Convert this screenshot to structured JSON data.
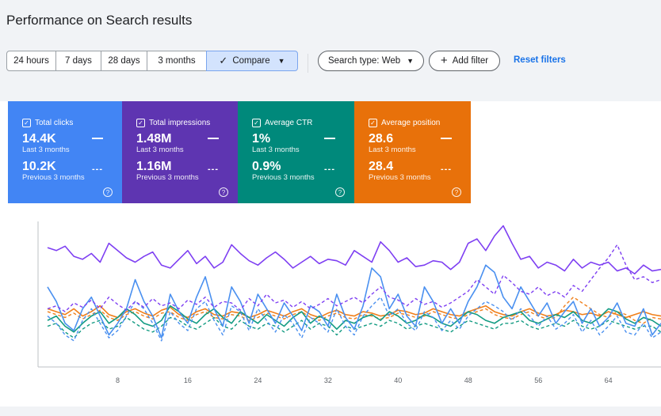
{
  "page": {
    "title": "Performance on Search results"
  },
  "toolbar": {
    "ranges": [
      "24 hours",
      "7 days",
      "28 days",
      "3 months"
    ],
    "compare_label": "Compare",
    "search_type": "Search type: Web",
    "add_filter": "Add filter",
    "reset_filters": "Reset filters"
  },
  "metrics": [
    {
      "label": "Total clicks",
      "value": "14.4K",
      "period": "Last 3 months",
      "prev_value": "10.2K",
      "prev_period": "Previous 3 months",
      "color": "#4285f4"
    },
    {
      "label": "Total impressions",
      "value": "1.48M",
      "period": "Last 3 months",
      "prev_value": "1.16M",
      "prev_period": "Previous 3 months",
      "color": "#5e35b1"
    },
    {
      "label": "Average CTR",
      "value": "1%",
      "period": "Last 3 months",
      "prev_value": "0.9%",
      "prev_period": "Previous 3 months",
      "color": "#00897b"
    },
    {
      "label": "Average position",
      "value": "28.6",
      "period": "Last 3 months",
      "prev_value": "28.4",
      "prev_period": "Previous 3 months",
      "color": "#e8710a"
    }
  ],
  "chart_data": {
    "type": "line",
    "xlabel": "",
    "ylabel": "",
    "x_ticks": [
      8,
      16,
      24,
      32,
      40,
      48,
      56,
      64
    ],
    "x_range": [
      0,
      70
    ],
    "y_range": [
      0,
      100
    ],
    "grid": false,
    "series": [
      {
        "metric": "Total impressions",
        "period": "current",
        "color": "#7e3ff2",
        "dash": false,
        "values": [
          82,
          80,
          83,
          76,
          74,
          78,
          72,
          85,
          80,
          75,
          72,
          76,
          79,
          70,
          68,
          74,
          80,
          71,
          76,
          68,
          72,
          84,
          78,
          73,
          70,
          75,
          79,
          74,
          68,
          72,
          76,
          71,
          74,
          73,
          70,
          80,
          76,
          72,
          86,
          80,
          72,
          75,
          69,
          70,
          73,
          72,
          67,
          72,
          85,
          88,
          80,
          90,
          97,
          85,
          74,
          76,
          68,
          72,
          70,
          66,
          74,
          68,
          72,
          70,
          72,
          66,
          68,
          64,
          70,
          66,
          67
        ]
      },
      {
        "metric": "Total impressions",
        "period": "previous",
        "color": "#7e3ff2",
        "dash": true,
        "values": [
          40,
          42,
          38,
          44,
          41,
          46,
          40,
          48,
          43,
          39,
          45,
          41,
          47,
          42,
          44,
          40,
          46,
          43,
          48,
          41,
          45,
          44,
          39,
          47,
          42,
          50,
          44,
          46,
          41,
          45,
          40,
          43,
          47,
          42,
          45,
          48,
          44,
          50,
          55,
          48,
          46,
          42,
          47,
          43,
          45,
          41,
          44,
          48,
          52,
          60,
          55,
          50,
          63,
          58,
          52,
          50,
          55,
          49,
          52,
          48,
          56,
          52,
          60,
          68,
          75,
          84,
          70,
          60,
          62,
          58,
          60
        ]
      },
      {
        "metric": "Total clicks",
        "period": "current",
        "color": "#4a90f0",
        "dash": false,
        "values": [
          55,
          45,
          30,
          25,
          40,
          48,
          35,
          22,
          30,
          40,
          60,
          45,
          35,
          20,
          50,
          38,
          30,
          48,
          62,
          40,
          28,
          55,
          45,
          30,
          50,
          40,
          30,
          44,
          35,
          25,
          42,
          38,
          28,
          50,
          34,
          26,
          42,
          68,
          62,
          40,
          50,
          35,
          28,
          55,
          45,
          30,
          40,
          30,
          45,
          55,
          70,
          65,
          48,
          40,
          55,
          45,
          35,
          44,
          30,
          38,
          45,
          30,
          40,
          28,
          34,
          44,
          30,
          28,
          40,
          22,
          30
        ]
      },
      {
        "metric": "Total clicks",
        "period": "previous",
        "color": "#4a90f0",
        "dash": true,
        "values": [
          35,
          30,
          22,
          18,
          32,
          40,
          30,
          20,
          25,
          35,
          45,
          40,
          30,
          18,
          38,
          30,
          25,
          40,
          45,
          32,
          22,
          42,
          38,
          25,
          40,
          32,
          24,
          36,
          30,
          20,
          34,
          30,
          24,
          40,
          28,
          22,
          35,
          42,
          48,
          35,
          40,
          30,
          25,
          38,
          34,
          25,
          32,
          26,
          35,
          40,
          45,
          42,
          38,
          32,
          40,
          35,
          28,
          35,
          26,
          30,
          36,
          24,
          32,
          22,
          28,
          35,
          24,
          22,
          30,
          20,
          24
        ]
      },
      {
        "metric": "Average CTR",
        "period": "current",
        "color": "#129b82",
        "dash": false,
        "values": [
          32,
          35,
          28,
          24,
          30,
          35,
          38,
          30,
          34,
          40,
          36,
          30,
          28,
          32,
          42,
          38,
          33,
          30,
          36,
          40,
          34,
          30,
          38,
          34,
          30,
          36,
          32,
          28,
          34,
          38,
          30,
          35,
          32,
          26,
          32,
          30,
          34,
          36,
          32,
          38,
          35,
          30,
          32,
          36,
          34,
          30,
          28,
          33,
          38,
          36,
          32,
          30,
          34,
          36,
          38,
          32,
          30,
          33,
          36,
          34,
          38,
          32,
          30,
          34,
          40,
          38,
          33,
          30,
          34,
          32,
          28
        ]
      },
      {
        "metric": "Average CTR",
        "period": "previous",
        "color": "#129b82",
        "dash": true,
        "values": [
          28,
          30,
          24,
          20,
          26,
          30,
          32,
          26,
          28,
          34,
          30,
          26,
          24,
          28,
          34,
          32,
          28,
          26,
          30,
          34,
          28,
          26,
          32,
          28,
          26,
          30,
          28,
          24,
          28,
          32,
          26,
          30,
          28,
          22,
          28,
          26,
          28,
          30,
          28,
          32,
          30,
          26,
          28,
          30,
          28,
          26,
          24,
          28,
          32,
          30,
          28,
          26,
          30,
          30,
          32,
          28,
          26,
          28,
          30,
          28,
          32,
          28,
          26,
          28,
          32,
          30,
          28,
          26,
          28,
          28,
          24
        ]
      },
      {
        "metric": "Average position",
        "period": "current",
        "color": "#f07f1a",
        "dash": false,
        "values": [
          40,
          38,
          36,
          40,
          35,
          38,
          42,
          36,
          34,
          38,
          40,
          37,
          35,
          39,
          41,
          36,
          34,
          38,
          40,
          36,
          35,
          38,
          37,
          34,
          36,
          39,
          37,
          35,
          38,
          40,
          36,
          34,
          37,
          39,
          36,
          35,
          38,
          37,
          35,
          36,
          39,
          38,
          36,
          37,
          40,
          38,
          36,
          35,
          38,
          40,
          42,
          38,
          36,
          35,
          38,
          40,
          37,
          35,
          36,
          39,
          38,
          36,
          37,
          35,
          38,
          36,
          34,
          36,
          38,
          36,
          35
        ]
      },
      {
        "metric": "Average position",
        "period": "previous",
        "color": "#f07f1a",
        "dash": true,
        "values": [
          38,
          36,
          34,
          37,
          33,
          36,
          39,
          34,
          32,
          36,
          38,
          35,
          33,
          37,
          38,
          34,
          32,
          36,
          38,
          34,
          33,
          36,
          35,
          32,
          34,
          37,
          35,
          33,
          36,
          38,
          34,
          32,
          35,
          37,
          34,
          33,
          36,
          35,
          33,
          34,
          37,
          36,
          34,
          35,
          38,
          36,
          34,
          33,
          36,
          38,
          40,
          36,
          34,
          33,
          36,
          38,
          35,
          33,
          34,
          42,
          48,
          44,
          40,
          36,
          34,
          38,
          36,
          32,
          30,
          34,
          33
        ]
      }
    ]
  }
}
